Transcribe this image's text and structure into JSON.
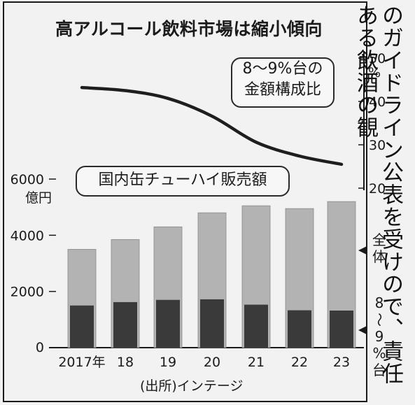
{
  "title": "高アルコール飲料市場は縮小傾向",
  "share_label_line1": "8～9%台の",
  "share_label_line2": "金額構成比",
  "sales_label": "国内缶チューハイ販売額",
  "source": "(出所)インテージ",
  "side_column_text": "のガイドライン公表を受けので、責任ある飲酒の観",
  "legend": {
    "total": "全体",
    "segment": "8～9%台"
  },
  "chart_data": {
    "type": "bar",
    "categories": [
      "2017年",
      "18",
      "19",
      "20",
      "21",
      "22",
      "23"
    ],
    "series": [
      {
        "name": "全体",
        "values": [
          3500,
          3850,
          4300,
          4800,
          5050,
          4950,
          5200
        ],
        "color": "#b3b3b3"
      },
      {
        "name": "8～9%台",
        "values": [
          1500,
          1620,
          1700,
          1720,
          1530,
          1330,
          1320
        ],
        "color": "#3a3a3a"
      }
    ],
    "left_axis": {
      "unit": "億円",
      "ticks": [
        0,
        2000,
        4000,
        6000
      ],
      "ylim": [
        0,
        6000
      ]
    },
    "line_series": {
      "label": "8～9%台の金額構成比",
      "values": [
        43.2,
        42.5,
        40.7,
        36.6,
        30.6,
        27.4,
        25.5
      ],
      "color": "#1e1e1e"
    },
    "right_axis": {
      "unit": "%",
      "ticks": [
        20,
        30,
        40,
        50
      ],
      "ylim": [
        20,
        50
      ]
    },
    "grid": false
  }
}
